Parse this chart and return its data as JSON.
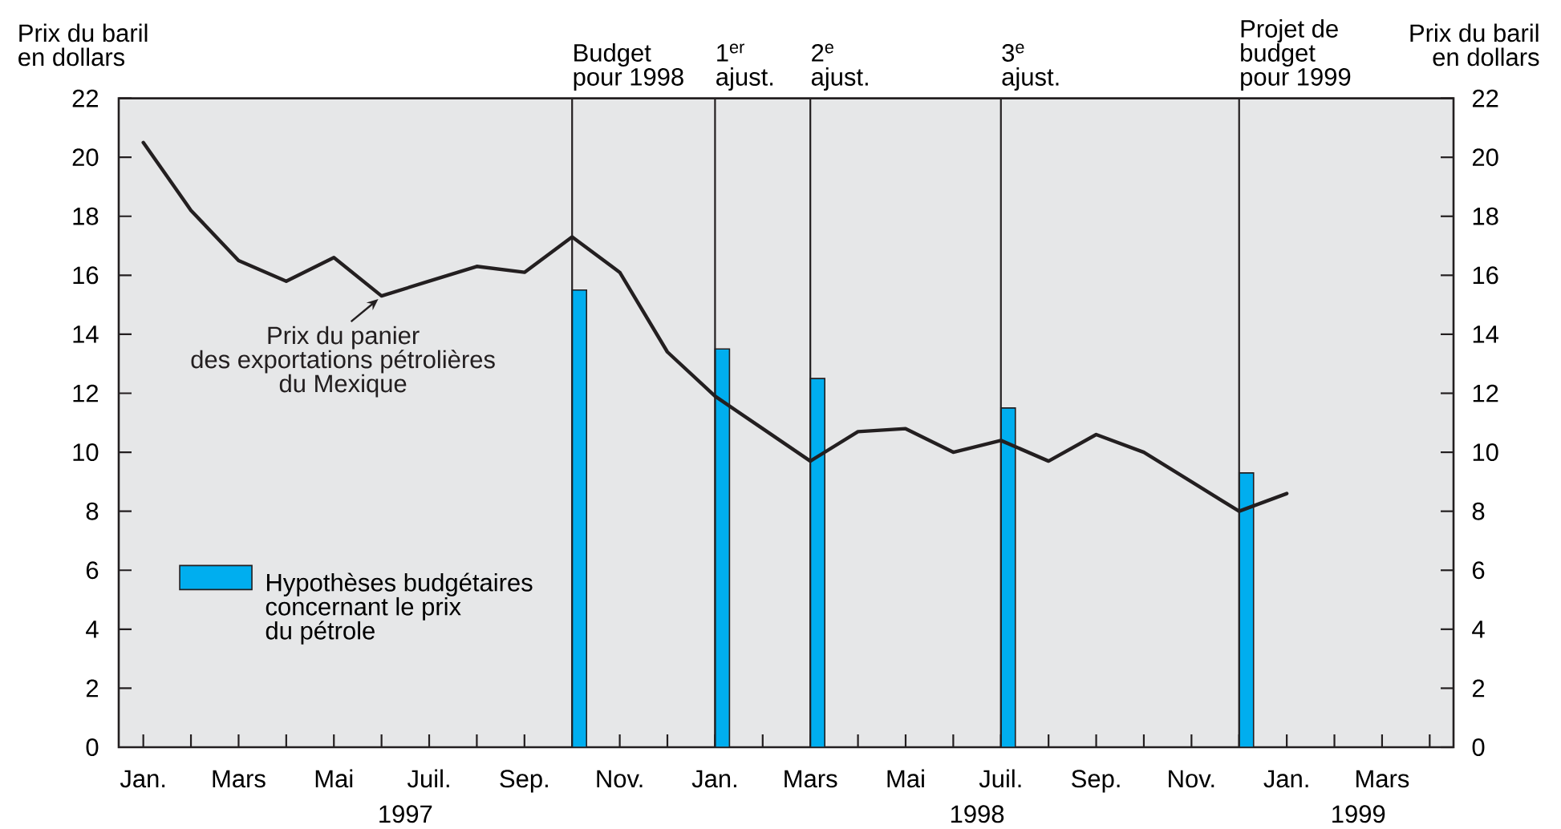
{
  "chart_data": {
    "type": "line",
    "ylabel": "Prix du baril en dollars",
    "y2label": "Prix du baril en dollars",
    "x": [
      "1997-01",
      "1997-02",
      "1997-03",
      "1997-04",
      "1997-05",
      "1997-06",
      "1997-07",
      "1997-08",
      "1997-09",
      "1997-10",
      "1997-11",
      "1997-12",
      "1998-01",
      "1998-02",
      "1998-03",
      "1998-04",
      "1998-05",
      "1998-06",
      "1998-07",
      "1998-08",
      "1998-09",
      "1998-10",
      "1998-11",
      "1998-12",
      "1999-01"
    ],
    "series": [
      {
        "name": "Hypothèses budgétaires concernant le prix du pétrole",
        "type": "bar",
        "color": "#00aeef",
        "x": [
          "1997-10",
          "1998-01",
          "1998-03",
          "1998-07",
          "1998-12"
        ],
        "values": [
          15.5,
          13.5,
          12.5,
          11.5,
          9.3
        ]
      },
      {
        "name": "Prix du panier des exportations pétrolières du Mexique",
        "color": "#231f20",
        "values": [
          20.5,
          18.2,
          16.5,
          15.8,
          16.6,
          15.3,
          15.8,
          16.3,
          16.1,
          17.3,
          16.1,
          13.4,
          11.9,
          10.8,
          9.7,
          10.7,
          10.8,
          10.0,
          10.4,
          9.7,
          10.6,
          10.0,
          9.0,
          8.0,
          8.6
        ]
      }
    ],
    "xlim": [
      "1996-12-16",
      "1999-04-16"
    ],
    "xticks": [
      {
        "value": "1997-01",
        "label": "Jan."
      },
      {
        "value": "1997-02",
        "label": null
      },
      {
        "value": "1997-03",
        "label": "Mars"
      },
      {
        "value": "1997-04",
        "label": null
      },
      {
        "value": "1997-05",
        "label": "Mai"
      },
      {
        "value": "1997-06",
        "label": null
      },
      {
        "value": "1997-07",
        "label": "Juil."
      },
      {
        "value": "1997-08",
        "label": null
      },
      {
        "value": "1997-09",
        "label": "Sep."
      },
      {
        "value": "1997-10",
        "label": null
      },
      {
        "value": "1997-11",
        "label": "Nov."
      },
      {
        "value": "1997-12",
        "label": null
      },
      {
        "value": "1998-01",
        "label": "Jan."
      },
      {
        "value": "1998-02",
        "label": null
      },
      {
        "value": "1998-03",
        "label": "Mars"
      },
      {
        "value": "1998-04",
        "label": null
      },
      {
        "value": "1998-05",
        "label": "Mai"
      },
      {
        "value": "1998-06",
        "label": null
      },
      {
        "value": "1998-07",
        "label": "Juil."
      },
      {
        "value": "1998-08",
        "label": null
      },
      {
        "value": "1998-09",
        "label": "Sep."
      },
      {
        "value": "1998-10",
        "label": null
      },
      {
        "value": "1998-11",
        "label": "Nov."
      },
      {
        "value": "1998-12",
        "label": null
      },
      {
        "value": "1999-01",
        "label": "Jan."
      },
      {
        "value": "1999-02",
        "label": null
      },
      {
        "value": "1999-03",
        "label": "Mars"
      },
      {
        "value": "1999-04",
        "label": null
      }
    ],
    "ylim": [
      0,
      22
    ],
    "yticks": [
      0,
      2,
      4,
      6,
      8,
      10,
      12,
      14,
      16,
      18,
      20,
      22
    ],
    "y2lim": [
      0,
      22
    ],
    "y2ticks": [
      0,
      2,
      4,
      6,
      8,
      10,
      12,
      14,
      16,
      18,
      20,
      22
    ],
    "ref_lines": [
      {
        "axis": "x",
        "value": "1997-10",
        "label": "Budget pour 1998",
        "color": "#231f20"
      },
      {
        "axis": "x",
        "value": "1998-01",
        "label": "1$^{er}$ ajust.",
        "color": "#231f20"
      },
      {
        "axis": "x",
        "value": "1998-03",
        "label": "2$^{e}$ ajust.",
        "color": "#231f20"
      },
      {
        "axis": "x",
        "value": "1998-07",
        "label": "3$^{e}$ ajust.",
        "color": "#231f20"
      },
      {
        "axis": "x",
        "value": "1998-12",
        "label": "Projet de budget pour 1999",
        "color": "#231f20"
      }
    ],
    "annotations": [
      "1997",
      "1998",
      "1999"
    ],
    "legend": "bottom left"
  }
}
